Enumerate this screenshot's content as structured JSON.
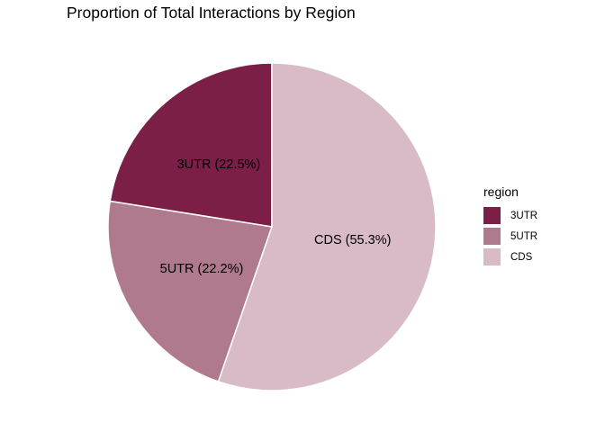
{
  "chart_data": {
    "type": "pie",
    "title": "Proportion of Total Interactions by Region",
    "legend_title": "region",
    "legend_position": "right",
    "slices": [
      {
        "name": "3UTR",
        "value": 22.5,
        "label": "3UTR (22.5%)",
        "color": "#7b1f47"
      },
      {
        "name": "5UTR",
        "value": 22.2,
        "label": "5UTR (22.2%)",
        "color": "#af798e"
      },
      {
        "name": "CDS",
        "value": 55.3,
        "label": "CDS (55.3%)",
        "color": "#d8bbc6"
      }
    ]
  }
}
